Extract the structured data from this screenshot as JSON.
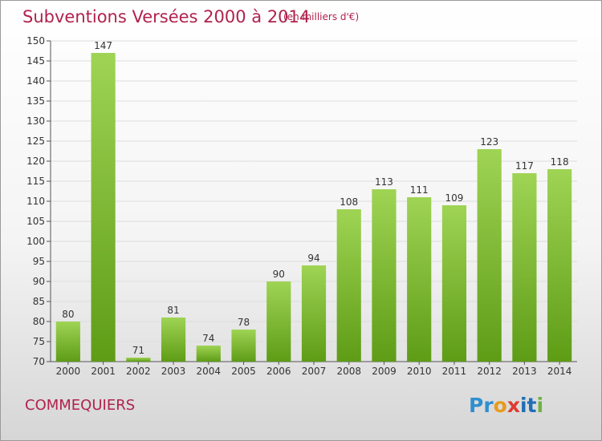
{
  "header": {
    "title": "Subventions Versées 2000 à 2014",
    "subtitle": "(en milliers d'€)"
  },
  "footer": {
    "commune": "COMMEQUIERS",
    "logo_parts": [
      "Pr",
      "o",
      "x",
      "it",
      "i"
    ]
  },
  "colors": {
    "title": "#b0224e",
    "bar_top": "#9fd454",
    "bar_bottom": "#5e9c16",
    "axis": "#555555"
  },
  "chart_data": {
    "type": "bar",
    "title": "Subventions Versées 2000 à 2014",
    "subtitle": "(en milliers d'€)",
    "categories": [
      "2000",
      "2001",
      "2002",
      "2003",
      "2004",
      "2005",
      "2006",
      "2007",
      "2008",
      "2009",
      "2010",
      "2011",
      "2012",
      "2013",
      "2014"
    ],
    "values": [
      80,
      147,
      71,
      81,
      74,
      78,
      90,
      94,
      108,
      113,
      111,
      109,
      123,
      117,
      118
    ],
    "value_labels": [
      "80",
      "147",
      "71",
      "81",
      "74",
      "78",
      "90",
      "94",
      "108",
      "113",
      "111",
      "109",
      "123",
      "117",
      "118"
    ],
    "ylim": [
      70,
      150
    ],
    "yticks": [
      70,
      75,
      80,
      85,
      90,
      95,
      100,
      105,
      110,
      115,
      120,
      125,
      130,
      135,
      140,
      145,
      150
    ],
    "ytick_labels": [
      "70",
      "75",
      "80",
      "85",
      "90",
      "95",
      "100",
      "105",
      "110",
      "115",
      "120",
      "125",
      "130",
      "135",
      "140",
      "145",
      "150"
    ],
    "xlabel": "",
    "ylabel": "",
    "grid": true
  }
}
